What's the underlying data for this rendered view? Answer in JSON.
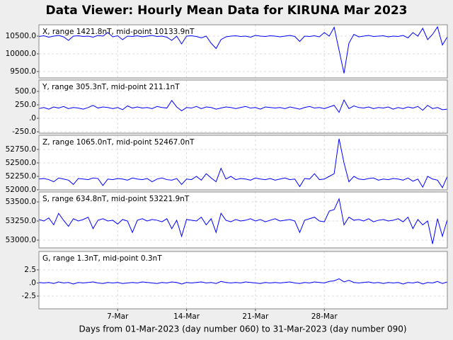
{
  "title": "Data Viewer:  Hourly Mean Data for KIRUNA Mar 2023",
  "x_axis_label": "Days from 01-Mar-2023 (day number 060) to 31-Mar-2023 (day number 090)",
  "chart_data": [
    {
      "type": "line",
      "subtitle": "X, range 1421.8nT, mid-point 10133.9nT",
      "color": "#0000ff",
      "grid": true,
      "xlim": [
        -1,
        40.5
      ],
      "ylim": [
        9320,
        10820
      ],
      "yticks": [
        {
          "value": 9500,
          "label": "9500.0"
        },
        {
          "value": 10000,
          "label": "10000.0"
        },
        {
          "value": 10500,
          "label": "10500.0"
        }
      ],
      "x": [
        -1,
        -0.5,
        0,
        0.5,
        1,
        1.5,
        2,
        2.5,
        3,
        3.5,
        4,
        4.5,
        5,
        5.5,
        6,
        6.5,
        7,
        7.5,
        8,
        8.5,
        9,
        9.5,
        10,
        10.5,
        11,
        11.5,
        12,
        12.5,
        13,
        13.5,
        14,
        14.5,
        15,
        15.5,
        16,
        16.5,
        17,
        17.5,
        18,
        18.5,
        19,
        19.5,
        20,
        20.5,
        21,
        21.5,
        22,
        22.5,
        23,
        23.5,
        24,
        24.5,
        25,
        25.5,
        26,
        26.5,
        27,
        27.5,
        28,
        28.5,
        29,
        29.5,
        30,
        30.5,
        31,
        31.5,
        32,
        32.5,
        33,
        33.5,
        34,
        34.5,
        35,
        35.5,
        36,
        36.5,
        37,
        37.5,
        38,
        38.5,
        39,
        39.5,
        40,
        40.5
      ],
      "values": [
        10490,
        10510,
        10470,
        10500,
        10520,
        10480,
        10380,
        10500,
        10510,
        10490,
        10500,
        10470,
        10520,
        10500,
        10600,
        10480,
        10510,
        10400,
        10500,
        10490,
        10510,
        10480,
        10500,
        10520,
        10490,
        10500,
        10470,
        10380,
        10500,
        10280,
        10500,
        10510,
        10490,
        10450,
        10500,
        10300,
        10150,
        10400,
        10480,
        10500,
        10510,
        10490,
        10500,
        10470,
        10520,
        10500,
        10490,
        10510,
        10500,
        10480,
        10500,
        10520,
        10490,
        10350,
        10500,
        10490,
        10510,
        10480,
        10600,
        10500,
        10750,
        10100,
        9450,
        10300,
        10550,
        10480,
        10500,
        10520,
        10490,
        10500,
        10510,
        10480,
        10500,
        10490,
        10520,
        10450,
        10600,
        10500,
        10720,
        10400,
        10550,
        10760,
        10250,
        10480
      ]
    },
    {
      "type": "line",
      "subtitle": "Y, range 305.3nT, mid-point 211.1nT",
      "color": "#0000ff",
      "grid": true,
      "xlim": [
        -1,
        40.5
      ],
      "ylim": [
        -276,
        710
      ],
      "yticks": [
        {
          "value": -250,
          "label": "-250.0"
        },
        {
          "value": 0,
          "label": ".0"
        },
        {
          "value": 250,
          "label": "250.0"
        },
        {
          "value": 500,
          "label": "500.0"
        }
      ],
      "x": [
        -1,
        -0.5,
        0,
        0.5,
        1,
        1.5,
        2,
        2.5,
        3,
        3.5,
        4,
        4.5,
        5,
        5.5,
        6,
        6.5,
        7,
        7.5,
        8,
        8.5,
        9,
        9.5,
        10,
        10.5,
        11,
        11.5,
        12,
        12.5,
        13,
        13.5,
        14,
        14.5,
        15,
        15.5,
        16,
        16.5,
        17,
        17.5,
        18,
        18.5,
        19,
        19.5,
        20,
        20.5,
        21,
        21.5,
        22,
        22.5,
        23,
        23.5,
        24,
        24.5,
        25,
        25.5,
        26,
        26.5,
        27,
        27.5,
        28,
        28.5,
        29,
        29.5,
        30,
        30.5,
        31,
        31.5,
        32,
        32.5,
        33,
        33.5,
        34,
        34.5,
        35,
        35.5,
        36,
        36.5,
        37,
        37.5,
        38,
        38.5,
        39,
        39.5,
        40,
        40.5
      ],
      "values": [
        180,
        200,
        170,
        210,
        190,
        220,
        180,
        200,
        190,
        170,
        200,
        240,
        190,
        210,
        200,
        180,
        200,
        160,
        230,
        190,
        210,
        190,
        200,
        180,
        220,
        200,
        190,
        330,
        210,
        140,
        200,
        190,
        220,
        180,
        210,
        200,
        170,
        190,
        210,
        200,
        180,
        200,
        220,
        190,
        200,
        170,
        210,
        200,
        190,
        200,
        180,
        210,
        190,
        170,
        200,
        220,
        190,
        200,
        180,
        210,
        240,
        110,
        340,
        180,
        230,
        200,
        190,
        210,
        180,
        200,
        190,
        210,
        170,
        200,
        180,
        210,
        190,
        220,
        150,
        240,
        180,
        200,
        160,
        170
      ]
    },
    {
      "type": "line",
      "subtitle": "Z, range 1065.0nT, mid-point 52467.0nT",
      "color": "#0000ff",
      "grid": true,
      "xlim": [
        -1,
        40.5
      ],
      "ylim": [
        52000,
        53013
      ],
      "yticks": [
        {
          "value": 52000,
          "label": "52000.0"
        },
        {
          "value": 52250,
          "label": "52250.0"
        },
        {
          "value": 52500,
          "label": "52500.0"
        },
        {
          "value": 52750,
          "label": "52750.0"
        }
      ],
      "x": [
        -1,
        -0.5,
        0,
        0.5,
        1,
        1.5,
        2,
        2.5,
        3,
        3.5,
        4,
        4.5,
        5,
        5.5,
        6,
        6.5,
        7,
        7.5,
        8,
        8.5,
        9,
        9.5,
        10,
        10.5,
        11,
        11.5,
        12,
        12.5,
        13,
        13.5,
        14,
        14.5,
        15,
        15.5,
        16,
        16.5,
        17,
        17.5,
        18,
        18.5,
        19,
        19.5,
        20,
        20.5,
        21,
        21.5,
        22,
        22.5,
        23,
        23.5,
        24,
        24.5,
        25,
        25.5,
        26,
        26.5,
        27,
        27.5,
        28,
        28.5,
        29,
        29.5,
        30,
        30.5,
        31,
        31.5,
        32,
        32.5,
        33,
        33.5,
        34,
        34.5,
        35,
        35.5,
        36,
        36.5,
        37,
        37.5,
        38,
        38.5,
        39,
        39.5,
        40,
        40.5
      ],
      "values": [
        52200,
        52210,
        52190,
        52150,
        52220,
        52200,
        52180,
        52100,
        52210,
        52200,
        52190,
        52220,
        52210,
        52080,
        52200,
        52190,
        52210,
        52200,
        52180,
        52220,
        52200,
        52190,
        52210,
        52150,
        52200,
        52220,
        52190,
        52180,
        52210,
        52100,
        52200,
        52190,
        52250,
        52180,
        52300,
        52220,
        52150,
        52400,
        52200,
        52250,
        52190,
        52210,
        52200,
        52180,
        52220,
        52200,
        52190,
        52210,
        52180,
        52200,
        52220,
        52190,
        52200,
        52060,
        52210,
        52200,
        52300,
        52190,
        52200,
        52250,
        52300,
        52950,
        52500,
        52150,
        52250,
        52200,
        52190,
        52210,
        52220,
        52180,
        52200,
        52190,
        52210,
        52200,
        52180,
        52220,
        52160,
        52200,
        52050,
        52250,
        52200,
        52180,
        52040,
        52250
      ]
    },
    {
      "type": "line",
      "subtitle": "S, range 634.8nT, mid-point 53221.9nT",
      "color": "#0000ff",
      "grid": true,
      "xlim": [
        -1,
        40.5
      ],
      "ylim": [
        52898,
        53630
      ],
      "yticks": [
        {
          "value": 53000,
          "label": "53000.0"
        },
        {
          "value": 53250,
          "label": "53250.0"
        },
        {
          "value": 53500,
          "label": "53500.0"
        }
      ],
      "x": [
        -1,
        -0.5,
        0,
        0.5,
        1,
        1.5,
        2,
        2.5,
        3,
        3.5,
        4,
        4.5,
        5,
        5.5,
        6,
        6.5,
        7,
        7.5,
        8,
        8.5,
        9,
        9.5,
        10,
        10.5,
        11,
        11.5,
        12,
        12.5,
        13,
        13.5,
        14,
        14.5,
        15,
        15.5,
        16,
        16.5,
        17,
        17.5,
        18,
        18.5,
        19,
        19.5,
        20,
        20.5,
        21,
        21.5,
        22,
        22.5,
        23,
        23.5,
        24,
        24.5,
        25,
        25.5,
        26,
        26.5,
        27,
        27.5,
        28,
        28.5,
        29,
        29.5,
        30,
        30.5,
        31,
        31.5,
        32,
        32.5,
        33,
        33.5,
        34,
        34.5,
        35,
        35.5,
        36,
        36.5,
        37,
        37.5,
        38,
        38.5,
        39,
        39.5,
        40,
        40.5
      ],
      "values": [
        53270,
        53250,
        53290,
        53200,
        53350,
        53260,
        53180,
        53280,
        53250,
        53270,
        53300,
        53150,
        53260,
        53280,
        53250,
        53260,
        53210,
        53270,
        53250,
        53100,
        53260,
        53280,
        53250,
        53270,
        53260,
        53240,
        53280,
        53150,
        53260,
        53050,
        53270,
        53260,
        53250,
        53300,
        53200,
        53280,
        53100,
        53350,
        53260,
        53240,
        53270,
        53250,
        53260,
        53280,
        53250,
        53270,
        53240,
        53260,
        53280,
        53250,
        53260,
        53270,
        53250,
        53100,
        53260,
        53280,
        53300,
        53250,
        53240,
        53380,
        53400,
        53540,
        53200,
        53300,
        53260,
        53270,
        53250,
        53280,
        53240,
        53260,
        53270,
        53250,
        53260,
        53280,
        53240,
        53300,
        53150,
        53270,
        53200,
        53250,
        52950,
        53280,
        53050,
        53270
      ]
    },
    {
      "type": "line",
      "subtitle": "G, range 1.3nT, mid-point 0.3nT",
      "color": "#0000ff",
      "grid": true,
      "xlim": [
        -1,
        40.5
      ],
      "ylim": [
        -4.93,
        6.0
      ],
      "yticks": [
        {
          "value": -2.5,
          "label": "-2.5"
        },
        {
          "value": 0,
          "label": ".0"
        },
        {
          "value": 2.5,
          "label": "2.5"
        }
      ],
      "xticks": [
        {
          "value": 7,
          "label": "7-Mar"
        },
        {
          "value": 14,
          "label": "14-Mar"
        },
        {
          "value": 21,
          "label": "21-Mar"
        },
        {
          "value": 28,
          "label": "28-Mar"
        }
      ],
      "x": [
        -1,
        -0.5,
        0,
        0.5,
        1,
        1.5,
        2,
        2.5,
        3,
        3.5,
        4,
        4.5,
        5,
        5.5,
        6,
        6.5,
        7,
        7.5,
        8,
        8.5,
        9,
        9.5,
        10,
        10.5,
        11,
        11.5,
        12,
        12.5,
        13,
        13.5,
        14,
        14.5,
        15,
        15.5,
        16,
        16.5,
        17,
        17.5,
        18,
        18.5,
        19,
        19.5,
        20,
        20.5,
        21,
        21.5,
        22,
        22.5,
        23,
        23.5,
        24,
        24.5,
        25,
        25.5,
        26,
        26.5,
        27,
        27.5,
        28,
        28.5,
        29,
        29.5,
        30,
        30.5,
        31,
        31.5,
        32,
        32.5,
        33,
        33.5,
        34,
        34.5,
        35,
        35.5,
        36,
        36.5,
        37,
        37.5,
        38,
        38.5,
        39,
        39.5,
        40,
        40.5
      ],
      "values": [
        0.1,
        0,
        0.1,
        -0.1,
        0.2,
        0,
        0.1,
        -0.2,
        0.1,
        0,
        0.1,
        0.2,
        0,
        -0.1,
        0.1,
        0,
        0.1,
        -0.1,
        0,
        0.1,
        0,
        0.2,
        0.1,
        0,
        -0.1,
        0.1,
        0,
        0.2,
        0.1,
        -0.2,
        0.1,
        0,
        0.1,
        0.2,
        0,
        0.1,
        -0.1,
        0.3,
        0.1,
        0,
        0.1,
        0,
        0.2,
        0.1,
        0,
        -0.1,
        0.1,
        0,
        0.1,
        0,
        0.1,
        0.2,
        0,
        -0.1,
        0.1,
        0,
        0.2,
        0.1,
        0,
        0.3,
        0.4,
        0.8,
        0.2,
        0.5,
        0.1,
        0,
        0.1,
        0.2,
        0,
        0.1,
        -0.1,
        0.1,
        0,
        0.1,
        -0.2,
        0.1,
        0,
        0.2,
        -0.2,
        0.1,
        0,
        0.3,
        -0.1,
        0.2
      ]
    }
  ]
}
